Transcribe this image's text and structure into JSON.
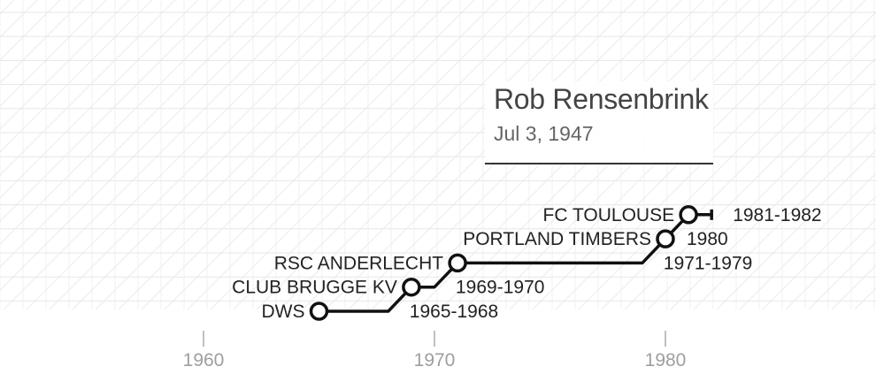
{
  "player": {
    "name": "Rob Rensenbrink",
    "birth_date": "Jul 3, 1947"
  },
  "axis": {
    "ticks": [
      "1960",
      "1970",
      "1980"
    ]
  },
  "career": [
    {
      "club": "DWS",
      "period": "1965-1968",
      "start": 1965,
      "end": 1968
    },
    {
      "club": "CLUB BRUGGE KV",
      "period": "1969-1970",
      "start": 1969,
      "end": 1970
    },
    {
      "club": "RSC ANDERLECHT",
      "period": "1971-1979",
      "start": 1971,
      "end": 1979
    },
    {
      "club": "PORTLAND TIMBERS",
      "period": "1980",
      "start": 1980,
      "end": 1980
    },
    {
      "club": "FC TOULOUSE",
      "period": "1981-1982",
      "start": 1981,
      "end": 1982
    }
  ],
  "colors": {
    "line": "#111111",
    "text": "#222222",
    "axis_text": "#9e9e9e",
    "grid": "#dddddd"
  }
}
